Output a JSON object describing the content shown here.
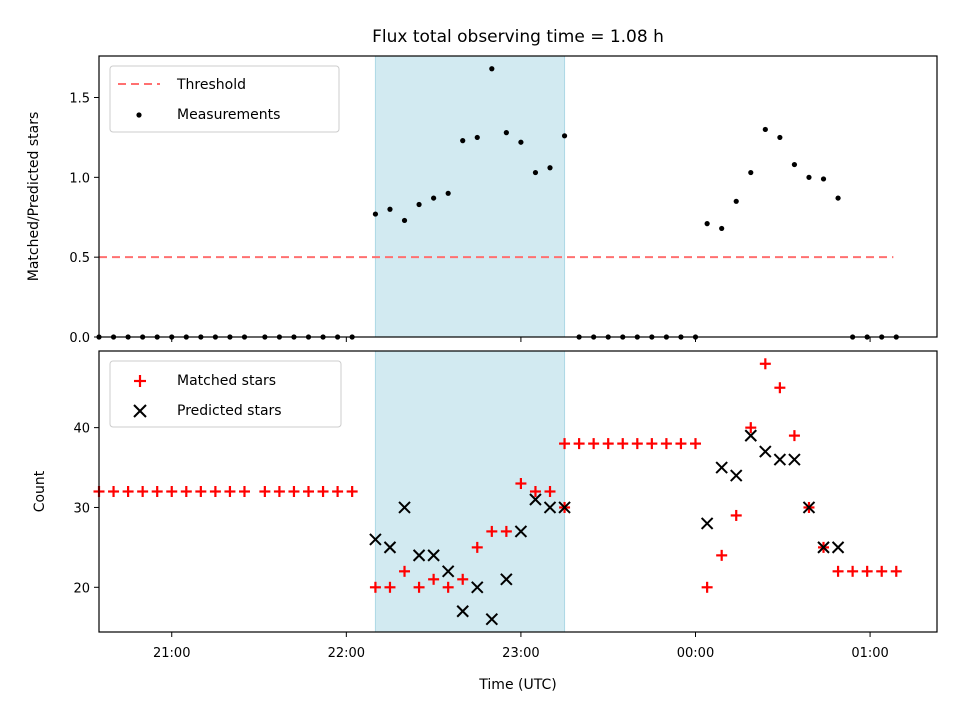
{
  "chart_data": {
    "type": "scatter",
    "title": "Flux total observing time = 1.08 h",
    "xlabel": "Time (UTC)",
    "x_tick_labels": [
      "21:00",
      "22:00",
      "23:00",
      "00:00",
      "01:00"
    ],
    "x_tick_values": [
      "21:00",
      "22:00",
      "23:00",
      "00:00",
      "01:00"
    ],
    "x_range": [
      "20:35",
      "01:23"
    ],
    "shaded_interval": [
      "22:10",
      "23:15"
    ],
    "shade_color": "#add8e6",
    "top": {
      "ylabel": "Matched/Predicted stars",
      "ylim": [
        0.0,
        1.76
      ],
      "y_ticks": [
        "0.0",
        "0.5",
        "1.0",
        "1.5"
      ],
      "legend": {
        "position": "upper left",
        "threshold_label": "Threshold",
        "measurements_label": "Measurements"
      },
      "threshold": {
        "value": 0.5,
        "x_start": "20:35",
        "x_end": "01:08",
        "color": "#ff7070"
      },
      "measurements": {
        "color": "#000000",
        "points": [
          [
            "20:35",
            0
          ],
          [
            "20:40",
            0
          ],
          [
            "20:45",
            0
          ],
          [
            "20:50",
            0
          ],
          [
            "20:55",
            0
          ],
          [
            "21:00",
            0
          ],
          [
            "21:05",
            0
          ],
          [
            "21:10",
            0
          ],
          [
            "21:15",
            0
          ],
          [
            "21:20",
            0
          ],
          [
            "21:25",
            0
          ],
          [
            "21:32",
            0
          ],
          [
            "21:37",
            0
          ],
          [
            "21:42",
            0
          ],
          [
            "21:47",
            0
          ],
          [
            "21:52",
            0
          ],
          [
            "21:57",
            0
          ],
          [
            "22:02",
            0
          ],
          [
            "22:10",
            0.77
          ],
          [
            "22:15",
            0.8
          ],
          [
            "22:20",
            0.73
          ],
          [
            "22:25",
            0.83
          ],
          [
            "22:30",
            0.87
          ],
          [
            "22:35",
            0.9
          ],
          [
            "22:40",
            1.23
          ],
          [
            "22:45",
            1.25
          ],
          [
            "22:50",
            1.68
          ],
          [
            "22:55",
            1.28
          ],
          [
            "23:00",
            1.22
          ],
          [
            "23:05",
            1.03
          ],
          [
            "23:10",
            1.06
          ],
          [
            "23:15",
            1.26
          ],
          [
            "23:20",
            0
          ],
          [
            "23:25",
            0
          ],
          [
            "23:30",
            0
          ],
          [
            "23:35",
            0
          ],
          [
            "23:40",
            0
          ],
          [
            "23:45",
            0
          ],
          [
            "23:50",
            0
          ],
          [
            "23:55",
            0
          ],
          [
            "00:00",
            0
          ],
          [
            "00:04",
            0.71
          ],
          [
            "00:09",
            0.68
          ],
          [
            "00:14",
            0.85
          ],
          [
            "00:19",
            1.03
          ],
          [
            "00:24",
            1.3
          ],
          [
            "00:29",
            1.25
          ],
          [
            "00:34",
            1.08
          ],
          [
            "00:39",
            1.0
          ],
          [
            "00:44",
            0.99
          ],
          [
            "00:49",
            0.87
          ],
          [
            "00:54",
            0
          ],
          [
            "00:59",
            0
          ],
          [
            "01:04",
            0
          ],
          [
            "01:09",
            0
          ]
        ]
      }
    },
    "bottom": {
      "ylabel": "Count",
      "ylim": [
        14.4,
        49.6
      ],
      "y_ticks": [
        "20",
        "30",
        "40"
      ],
      "legend": {
        "position": "upper left",
        "matched_label": "Matched stars",
        "predicted_label": "Predicted stars"
      },
      "matched": {
        "color": "#ff0000",
        "points": [
          [
            "20:35",
            32
          ],
          [
            "20:40",
            32
          ],
          [
            "20:45",
            32
          ],
          [
            "20:50",
            32
          ],
          [
            "20:55",
            32
          ],
          [
            "21:00",
            32
          ],
          [
            "21:05",
            32
          ],
          [
            "21:10",
            32
          ],
          [
            "21:15",
            32
          ],
          [
            "21:20",
            32
          ],
          [
            "21:25",
            32
          ],
          [
            "21:32",
            32
          ],
          [
            "21:37",
            32
          ],
          [
            "21:42",
            32
          ],
          [
            "21:47",
            32
          ],
          [
            "21:52",
            32
          ],
          [
            "21:57",
            32
          ],
          [
            "22:02",
            32
          ],
          [
            "22:10",
            20
          ],
          [
            "22:15",
            20
          ],
          [
            "22:20",
            22
          ],
          [
            "22:25",
            20
          ],
          [
            "22:30",
            21
          ],
          [
            "22:35",
            20
          ],
          [
            "22:40",
            21
          ],
          [
            "22:45",
            25
          ],
          [
            "22:50",
            27
          ],
          [
            "22:55",
            27
          ],
          [
            "23:00",
            33
          ],
          [
            "23:05",
            32
          ],
          [
            "23:10",
            32
          ],
          [
            "23:15",
            30
          ],
          [
            "23:15",
            38
          ],
          [
            "23:20",
            38
          ],
          [
            "23:25",
            38
          ],
          [
            "23:30",
            38
          ],
          [
            "23:35",
            38
          ],
          [
            "23:40",
            38
          ],
          [
            "23:45",
            38
          ],
          [
            "23:50",
            38
          ],
          [
            "23:55",
            38
          ],
          [
            "00:00",
            38
          ],
          [
            "00:04",
            20
          ],
          [
            "00:09",
            24
          ],
          [
            "00:14",
            29
          ],
          [
            "00:19",
            40
          ],
          [
            "00:24",
            48
          ],
          [
            "00:29",
            45
          ],
          [
            "00:34",
            39
          ],
          [
            "00:39",
            30
          ],
          [
            "00:44",
            25
          ],
          [
            "00:49",
            22
          ],
          [
            "00:54",
            22
          ],
          [
            "00:59",
            22
          ],
          [
            "01:04",
            22
          ],
          [
            "01:09",
            22
          ]
        ]
      },
      "predicted": {
        "color": "#000000",
        "points": [
          [
            "22:10",
            26
          ],
          [
            "22:15",
            25
          ],
          [
            "22:20",
            30
          ],
          [
            "22:25",
            24
          ],
          [
            "22:30",
            24
          ],
          [
            "22:35",
            22
          ],
          [
            "22:40",
            17
          ],
          [
            "22:45",
            20
          ],
          [
            "22:50",
            16
          ],
          [
            "22:55",
            21
          ],
          [
            "23:00",
            27
          ],
          [
            "23:05",
            31
          ],
          [
            "23:10",
            30
          ],
          [
            "23:15",
            30
          ],
          [
            "00:04",
            28
          ],
          [
            "00:09",
            35
          ],
          [
            "00:14",
            34
          ],
          [
            "00:19",
            39
          ],
          [
            "00:24",
            37
          ],
          [
            "00:29",
            36
          ],
          [
            "00:34",
            36
          ],
          [
            "00:39",
            30
          ],
          [
            "00:44",
            25
          ],
          [
            "00:49",
            25
          ]
        ]
      }
    }
  }
}
